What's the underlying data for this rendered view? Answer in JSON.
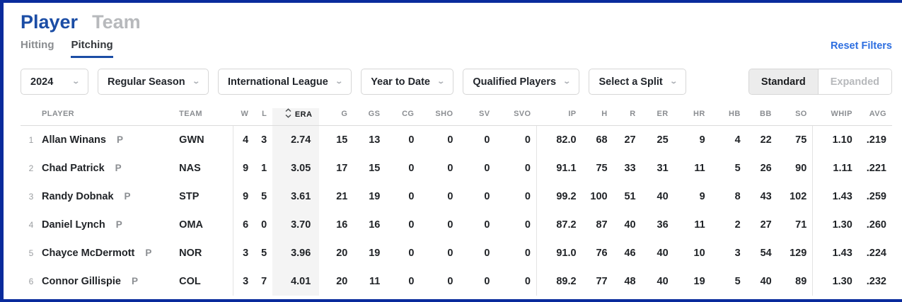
{
  "header": {
    "player_label": "Player",
    "team_label": "Team"
  },
  "tabs": {
    "hitting": "Hitting",
    "pitching": "Pitching",
    "reset_filters": "Reset Filters"
  },
  "filters": {
    "year": "2024",
    "season_type": "Regular Season",
    "league": "International League",
    "date_range": "Year to Date",
    "player_pool": "Qualified Players",
    "split": "Select a Split"
  },
  "view_toggle": {
    "standard": "Standard",
    "expanded": "Expanded"
  },
  "colors": {
    "brand_border": "#0a2b9c",
    "title_blue": "#1b4da5",
    "link_blue": "#2d6ee0",
    "column_highlight": "#f4f4f4"
  },
  "table": {
    "sorted_column": "ERA",
    "columns": [
      "",
      "PLAYER",
      "TEAM",
      "W",
      "L",
      "ERA",
      "G",
      "GS",
      "CG",
      "SHO",
      "SV",
      "SVO",
      "IP",
      "H",
      "R",
      "ER",
      "HR",
      "HB",
      "BB",
      "SO",
      "WHIP",
      "AVG"
    ],
    "rows": [
      {
        "rank": "1",
        "name": "Allan Winans",
        "pos": "P",
        "team": "GWN",
        "w": "4",
        "l": "3",
        "era": "2.74",
        "g": "15",
        "gs": "13",
        "cg": "0",
        "sho": "0",
        "sv": "0",
        "svo": "0",
        "ip": "82.0",
        "h": "68",
        "r": "27",
        "er": "25",
        "hr": "9",
        "hb": "4",
        "bb": "22",
        "so": "75",
        "whip": "1.10",
        "avg": ".219"
      },
      {
        "rank": "2",
        "name": "Chad Patrick",
        "pos": "P",
        "team": "NAS",
        "w": "9",
        "l": "1",
        "era": "3.05",
        "g": "17",
        "gs": "15",
        "cg": "0",
        "sho": "0",
        "sv": "0",
        "svo": "0",
        "ip": "91.1",
        "h": "75",
        "r": "33",
        "er": "31",
        "hr": "11",
        "hb": "5",
        "bb": "26",
        "so": "90",
        "whip": "1.11",
        "avg": ".221"
      },
      {
        "rank": "3",
        "name": "Randy Dobnak",
        "pos": "P",
        "team": "STP",
        "w": "9",
        "l": "5",
        "era": "3.61",
        "g": "21",
        "gs": "19",
        "cg": "0",
        "sho": "0",
        "sv": "0",
        "svo": "0",
        "ip": "99.2",
        "h": "100",
        "r": "51",
        "er": "40",
        "hr": "9",
        "hb": "8",
        "bb": "43",
        "so": "102",
        "whip": "1.43",
        "avg": ".259"
      },
      {
        "rank": "4",
        "name": "Daniel Lynch",
        "pos": "P",
        "team": "OMA",
        "w": "6",
        "l": "0",
        "era": "3.70",
        "g": "16",
        "gs": "16",
        "cg": "0",
        "sho": "0",
        "sv": "0",
        "svo": "0",
        "ip": "87.2",
        "h": "87",
        "r": "40",
        "er": "36",
        "hr": "11",
        "hb": "2",
        "bb": "27",
        "so": "71",
        "whip": "1.30",
        "avg": ".260"
      },
      {
        "rank": "5",
        "name": "Chayce McDermott",
        "pos": "P",
        "team": "NOR",
        "w": "3",
        "l": "5",
        "era": "3.96",
        "g": "20",
        "gs": "19",
        "cg": "0",
        "sho": "0",
        "sv": "0",
        "svo": "0",
        "ip": "91.0",
        "h": "76",
        "r": "46",
        "er": "40",
        "hr": "10",
        "hb": "3",
        "bb": "54",
        "so": "129",
        "whip": "1.43",
        "avg": ".224"
      },
      {
        "rank": "6",
        "name": "Connor Gillispie",
        "pos": "P",
        "team": "COL",
        "w": "3",
        "l": "7",
        "era": "4.01",
        "g": "20",
        "gs": "11",
        "cg": "0",
        "sho": "0",
        "sv": "0",
        "svo": "0",
        "ip": "89.2",
        "h": "77",
        "r": "48",
        "er": "40",
        "hr": "19",
        "hb": "5",
        "bb": "40",
        "so": "89",
        "whip": "1.30",
        "avg": ".232"
      }
    ]
  }
}
